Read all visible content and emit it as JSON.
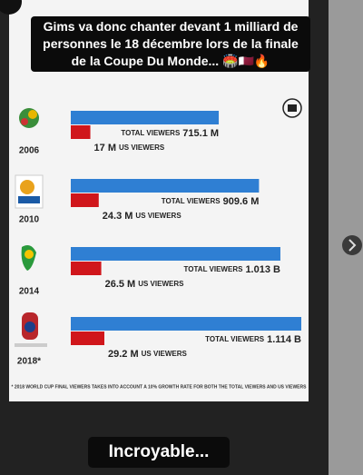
{
  "caption": "Gims va donc chanter devant 1 milliard de personnes le 18 décembre lors de la finale de la Coupe Du Monde... 🏟️🇶🇦🔥",
  "overlay_text": "Incroyable...",
  "chart_data": {
    "type": "bar",
    "orientation": "horizontal",
    "categories": [
      "2006",
      "2010",
      "2014",
      "2018*"
    ],
    "series": [
      {
        "name": "TOTAL VIEWERS",
        "color": "#2f7fd3",
        "values": [
          715.1,
          909.6,
          1013,
          1114
        ],
        "value_labels": [
          "715.1 M",
          "909.6 M",
          "1.013 B",
          "1.114 B"
        ]
      },
      {
        "name": "US VIEWERS",
        "color": "#d0161b",
        "values": [
          17,
          24.3,
          26.5,
          29.2
        ],
        "value_labels": [
          "17 M",
          "24.3 M",
          "26.5 M",
          "29.2 M"
        ]
      }
    ],
    "footnote": "* 2018 WORLD CUP FINAL VIEWERS TAKES INTO ACCOUNT A 10% GROWTH RATE FOR BOTH THE TOTAL VIEWERS AND US VIEWERS"
  }
}
